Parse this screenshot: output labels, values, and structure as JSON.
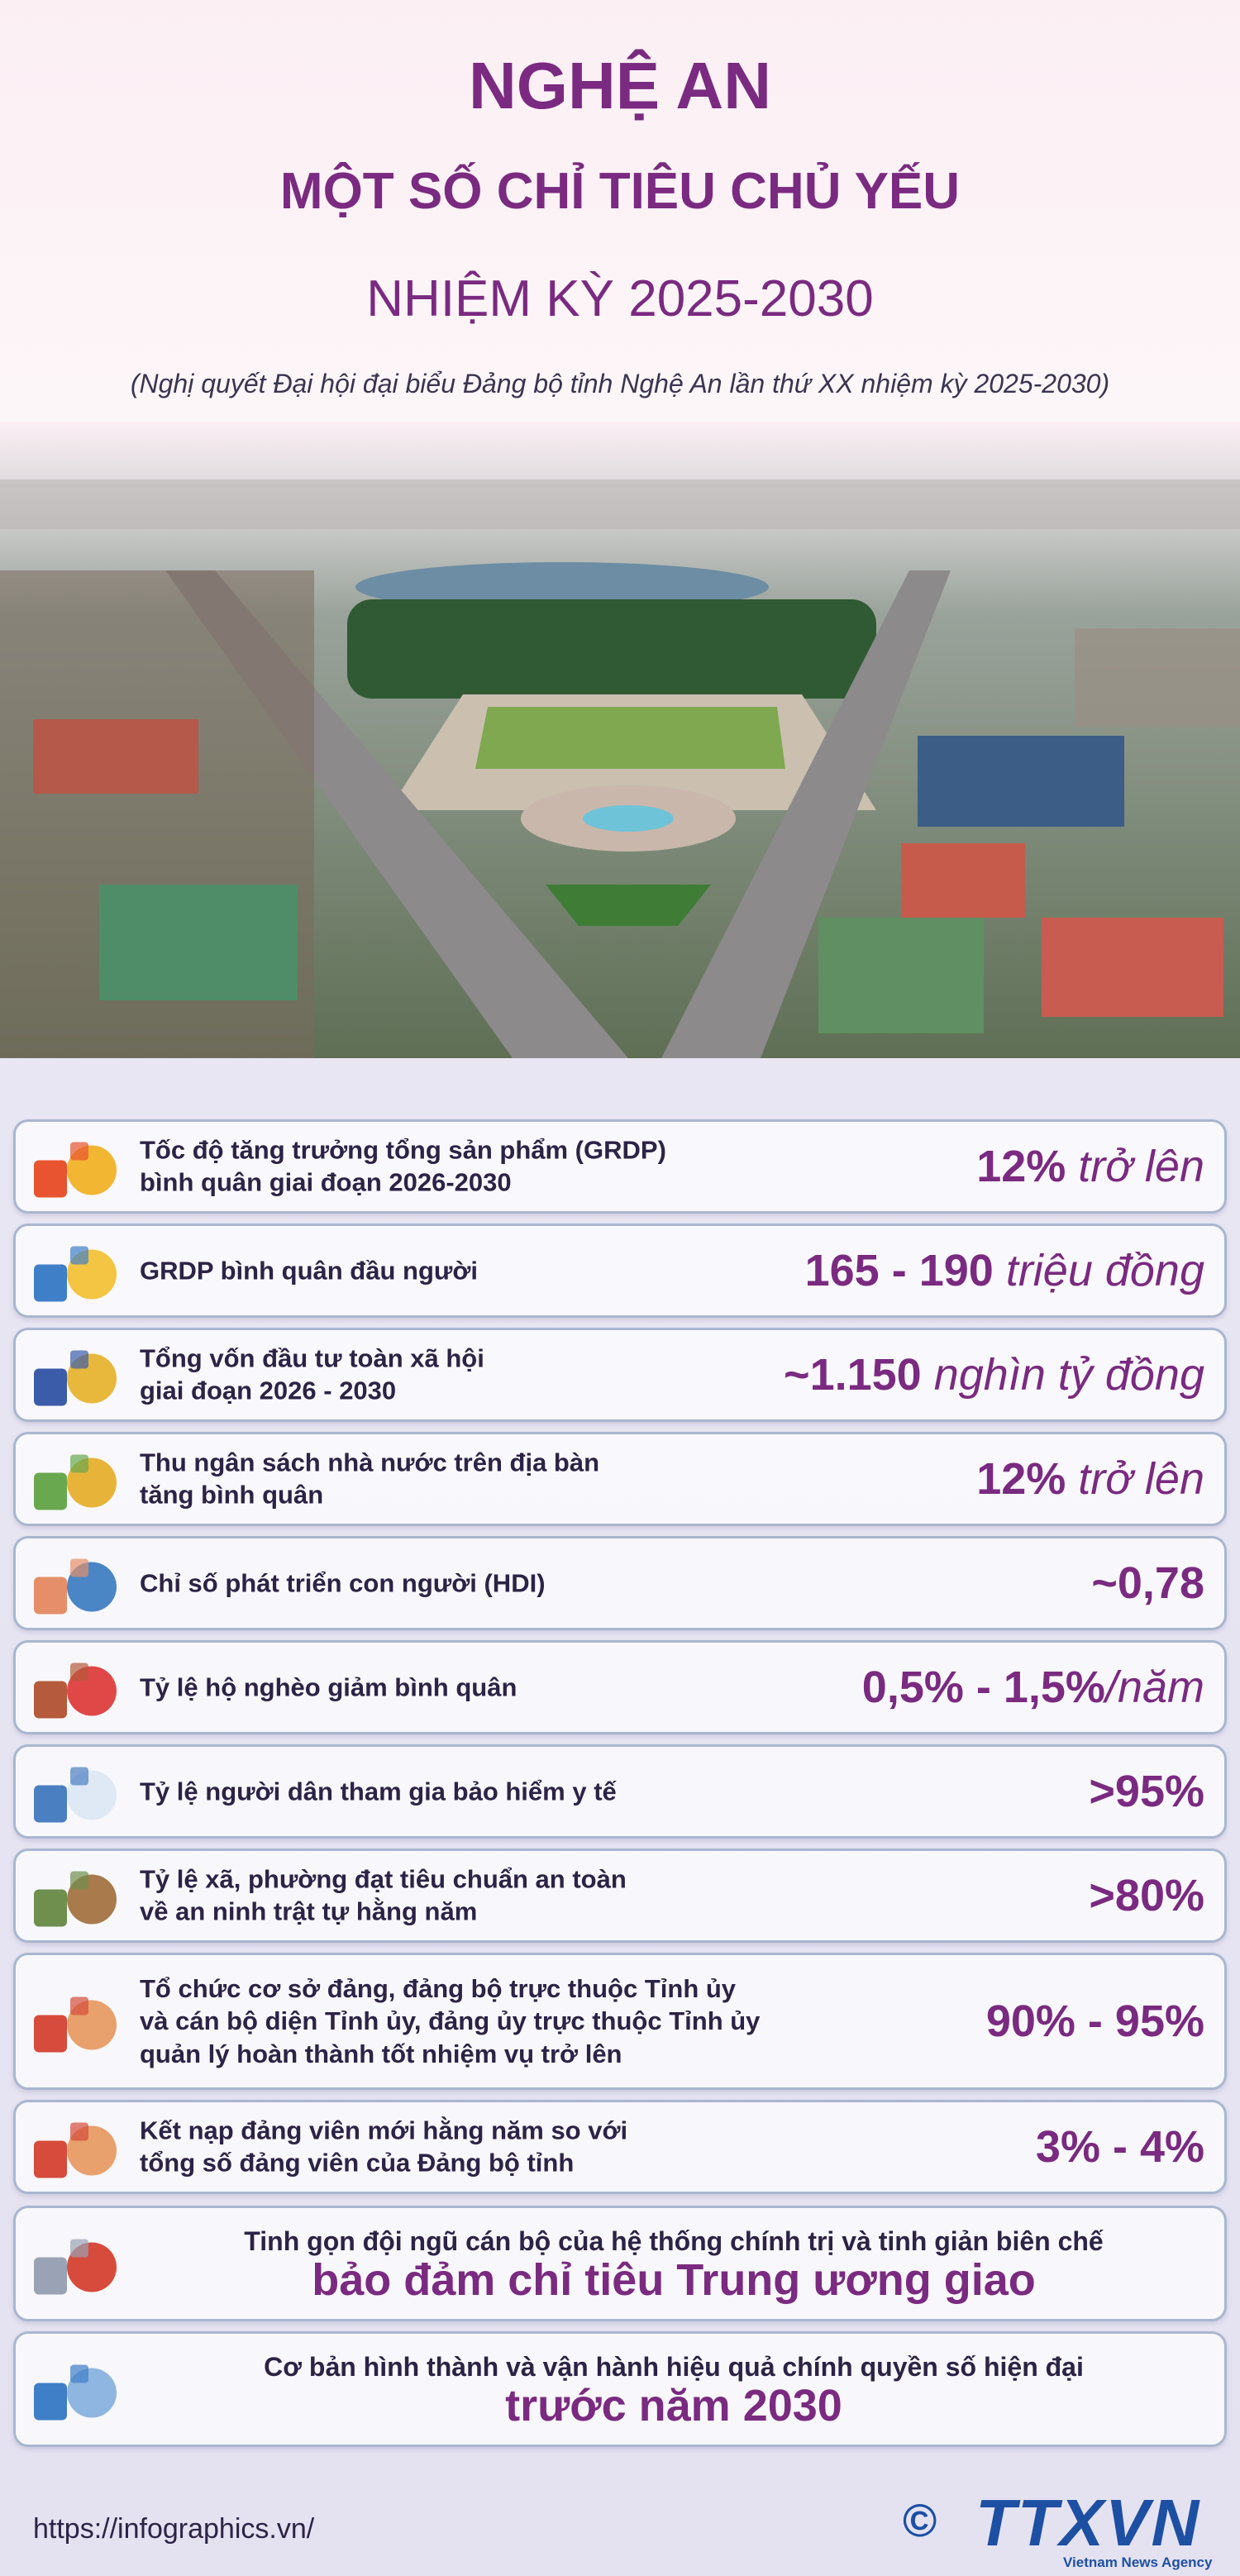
{
  "header": {
    "title": "NGHỆ AN",
    "subtitle": "MỘT SỐ CHỈ TIÊU CHỦ YẾU",
    "term": "NHIỆM KỲ 2025-2030",
    "source": "(Nghị quyết Đại hội đại biểu Đảng bộ tỉnh Nghệ An lần thứ XX nhiệm kỳ 2025-2030)"
  },
  "indicators": [
    {
      "label": [
        "Tốc độ tăng trưởng tổng sản phẩm (GRDP)",
        "bình quân giai đoạn 2026-2030"
      ],
      "value": "12%",
      "unit": "trở lên"
    },
    {
      "label": [
        "GRDP bình quân đầu người"
      ],
      "value": "165 - 190",
      "unit": "triệu đồng"
    },
    {
      "label": [
        "Tổng vốn đầu tư toàn xã hội",
        "giai đoạn 2026 - 2030"
      ],
      "value": "~1.150",
      "unit": "nghìn tỷ đồng"
    },
    {
      "label": [
        "Thu ngân sách nhà nước trên địa bàn",
        "tăng bình quân"
      ],
      "value": "12%",
      "unit": "trở lên"
    },
    {
      "label": [
        "Chỉ số phát triển con người (HDI)"
      ],
      "value": "~0,78"
    },
    {
      "label": [
        "Tỷ lệ hộ nghèo giảm bình quân"
      ],
      "value": "0,5% - 1,5%",
      "unit": "/năm"
    },
    {
      "label": [
        "Tỷ lệ người dân tham gia bảo hiểm y tế"
      ],
      "value": ">95%"
    },
    {
      "label": [
        "Tỷ lệ xã, phường đạt tiêu chuẩn an toàn",
        "về an ninh trật tự hằng năm"
      ],
      "value": ">80%"
    },
    {
      "label": [
        "Tổ chức cơ sở đảng, đảng bộ trực thuộc Tỉnh ủy",
        "và cán bộ diện Tỉnh ủy, đảng ủy trực thuộc Tỉnh ủy",
        "quản lý hoàn thành tốt nhiệm vụ trở lên"
      ],
      "value": "90% - 95%"
    },
    {
      "label": [
        "Kết nạp đảng viên mới hằng năm so với",
        "tổng số đảng viên của Đảng bộ tỉnh"
      ],
      "value": "3% - 4%"
    }
  ],
  "goals": [
    {
      "label": "Tinh gọn đội ngũ cán bộ của hệ thống chính trị và tinh giản biên chế",
      "value": "bảo đảm chỉ tiêu Trung ương giao"
    },
    {
      "label": "Cơ bản hình thành và vận hành hiệu quả chính quyền số hiện đại",
      "value": "trước năm 2030"
    }
  ],
  "footer": {
    "url": "https://infographics.vn/",
    "copyright": "©",
    "logo": "TTXVN",
    "agency": "Vietnam News Agency"
  }
}
